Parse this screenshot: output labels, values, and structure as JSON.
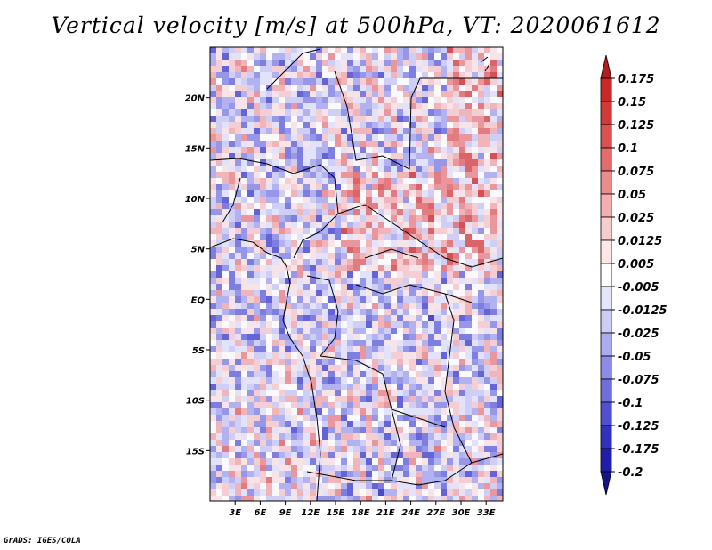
{
  "title": "Vertical velocity [m/s] at 500hPa, VT: 2020061612",
  "credit": "GrADS: IGES/COLA",
  "chart_data": {
    "type": "heatmap",
    "variable": "Vertical velocity",
    "units": "m/s",
    "level": "500hPa",
    "valid_time": "2020061612",
    "lon_range": [
      0,
      35
    ],
    "lat_range": [
      -20,
      25
    ],
    "x_ticks": [
      "3E",
      "6E",
      "9E",
      "12E",
      "15E",
      "18E",
      "21E",
      "24E",
      "27E",
      "30E",
      "33E"
    ],
    "x_tick_values": [
      3,
      6,
      9,
      12,
      15,
      18,
      21,
      24,
      27,
      30,
      33
    ],
    "y_ticks": [
      "20N",
      "15N",
      "10N",
      "5N",
      "EQ",
      "5S",
      "10S",
      "15S"
    ],
    "y_tick_values": [
      20,
      15,
      10,
      5,
      0,
      -5,
      -10,
      -15
    ],
    "colorbar": {
      "levels": [
        0.175,
        0.15,
        0.125,
        0.1,
        0.075,
        0.05,
        0.025,
        0.0125,
        0.005,
        -0.005,
        -0.0125,
        -0.025,
        -0.05,
        -0.075,
        -0.1,
        -0.125,
        -0.175,
        -0.2
      ],
      "labels": [
        "0.175",
        "0.15",
        "0.125",
        "0.1",
        "0.075",
        "0.05",
        "0.025",
        "0.0125",
        "0.005",
        "-0.005",
        "-0.0125",
        "-0.025",
        "-0.05",
        "-0.075",
        "-0.1",
        "-0.125",
        "-0.175",
        "-0.2"
      ],
      "colors": [
        "#b41e1e",
        "#c82828",
        "#d23a3a",
        "#dc5050",
        "#e46c6c",
        "#ec8c8c",
        "#f4aeae",
        "#f9cccc",
        "#fde6e6",
        "#ffffff",
        "#e4e4fb",
        "#ccccf6",
        "#ababf0",
        "#8c8ce8",
        "#6e6edd",
        "#5050d2",
        "#3232c0",
        "#1e1eaa",
        "#14148c"
      ]
    },
    "grid": false,
    "legend_position": "right"
  }
}
